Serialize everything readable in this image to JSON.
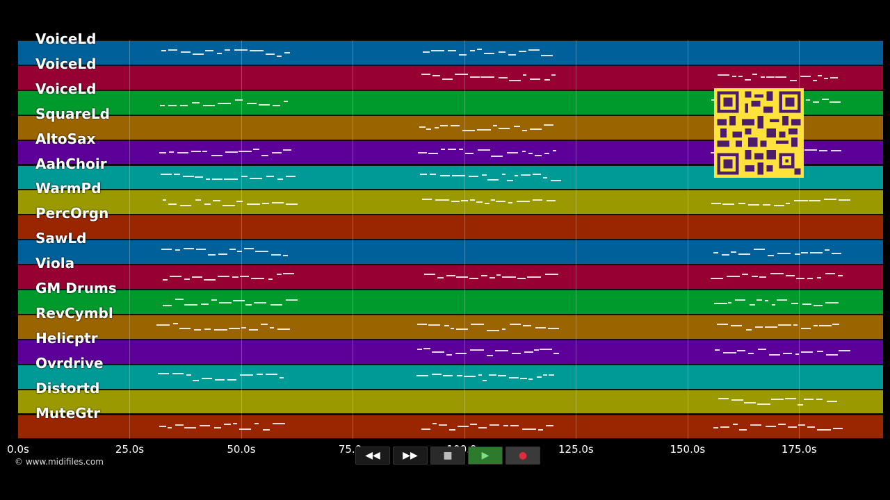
{
  "tracks": [
    {
      "name": "VoiceLd",
      "color": "#00619a"
    },
    {
      "name": "VoiceLd",
      "color": "#960033"
    },
    {
      "name": "VoiceLd",
      "color": "#009a2c"
    },
    {
      "name": "SquareLd",
      "color": "#9a6400"
    },
    {
      "name": "AltoSax",
      "color": "#5c0099"
    },
    {
      "name": "AahChoir",
      "color": "#009a96"
    },
    {
      "name": "WarmPd",
      "color": "#9a9a00"
    },
    {
      "name": "PercOrgn",
      "color": "#992600"
    },
    {
      "name": "SawLd",
      "color": "#00619a"
    },
    {
      "name": "Viola",
      "color": "#960033"
    },
    {
      "name": "GM Drums",
      "color": "#009a2c"
    },
    {
      "name": "RevCymbl",
      "color": "#9a6400"
    },
    {
      "name": "Helicptr",
      "color": "#5c0099"
    },
    {
      "name": "Ovrdrive",
      "color": "#009a96"
    },
    {
      "name": "Distortd",
      "color": "#9a9a00"
    },
    {
      "name": "MuteGtr",
      "color": "#992600"
    }
  ],
  "timeline": {
    "ticks": [
      "0.0s",
      "25.0s",
      "50.0s",
      "75.0s",
      "100.0s",
      "125.0s",
      "150.0s",
      "175.0s"
    ],
    "tick_values": [
      0,
      25,
      50,
      75,
      100,
      125,
      150,
      175
    ],
    "max_seconds": 193.8
  },
  "transport": {
    "rewind": "◀◀",
    "forward": "▶▶",
    "stop": "■",
    "play": "▶",
    "record": "●"
  },
  "footer": {
    "copyright": "© www.midifiles.com"
  },
  "icons": {
    "rewind": "rewind-icon",
    "forward": "fast-forward-icon",
    "stop": "stop-icon",
    "play": "play-icon",
    "record": "record-icon",
    "qr": "qr-code-icon"
  }
}
